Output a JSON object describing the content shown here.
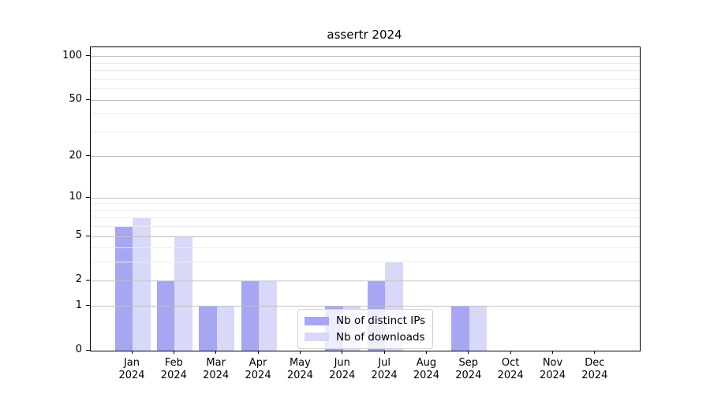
{
  "chart_data": {
    "type": "bar",
    "title": "assertr 2024",
    "categories": [
      "Jan",
      "Feb",
      "Mar",
      "Apr",
      "May",
      "Jun",
      "Jul",
      "Aug",
      "Sep",
      "Oct",
      "Nov",
      "Dec"
    ],
    "category_year": "2024",
    "series": [
      {
        "name": "Nb of distinct IPs",
        "color": "#a6a6f2",
        "values": [
          6,
          2,
          1,
          2,
          0,
          1,
          2,
          0,
          1,
          0,
          0,
          0
        ]
      },
      {
        "name": "Nb of downloads",
        "color": "#d8d8f9",
        "values": [
          7,
          5,
          1,
          2,
          0,
          1,
          3,
          0,
          1,
          0,
          0,
          0
        ]
      }
    ],
    "y_axis": {
      "scale": "log1p",
      "major_ticks": [
        0,
        1,
        2,
        5,
        10,
        20,
        50,
        100
      ],
      "minor_gridlines": [
        3,
        4,
        6,
        7,
        8,
        9,
        30,
        40,
        60,
        70,
        80,
        90
      ],
      "top_value": 116
    },
    "xlabel": "",
    "ylabel": "",
    "grid": true,
    "legend_position": "inside-bottom-center",
    "colors": {
      "major_grid": "#c0c0c0",
      "minor_grid": "#ececec",
      "axis": "#000000",
      "background": "#ffffff"
    }
  }
}
